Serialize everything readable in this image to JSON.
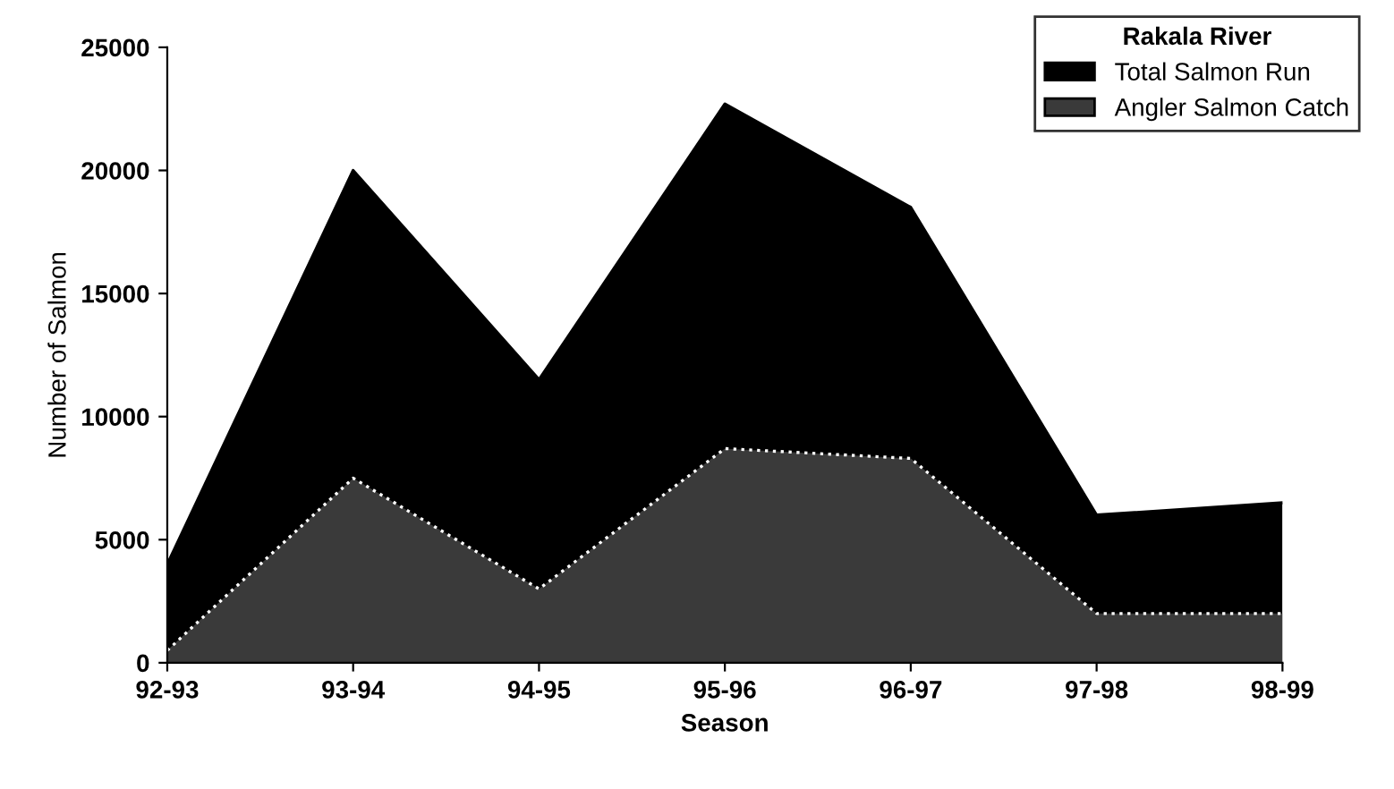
{
  "chart_data": {
    "type": "area",
    "xlabel": "Season",
    "ylabel": "Number of Salmon",
    "legend_title": "Rakala River",
    "categories": [
      "92-93",
      "93-94",
      "94-95",
      "95-96",
      "96-97",
      "97-98",
      "98-99"
    ],
    "series": [
      {
        "name": "Total Salmon Run",
        "color": "#000000",
        "values": [
          4000,
          20000,
          11500,
          22700,
          18500,
          6000,
          6500
        ]
      },
      {
        "name": "Angler Salmon Catch",
        "color": "#3a3a3a",
        "line_style": "dotted",
        "values": [
          500,
          7500,
          3000,
          8700,
          8300,
          2000,
          2000
        ]
      }
    ],
    "ylim": [
      0,
      25000
    ],
    "yticks": [
      0,
      5000,
      10000,
      15000,
      20000,
      25000
    ],
    "grid": false,
    "legend": "top right"
  }
}
